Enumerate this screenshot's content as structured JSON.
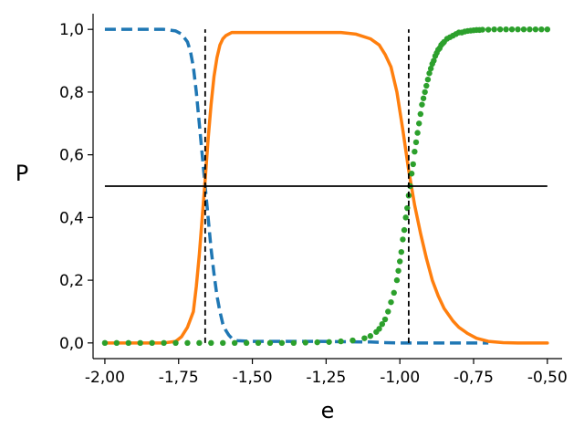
{
  "chart_data": {
    "type": "line",
    "title": "",
    "xlabel": "e",
    "ylabel": "P",
    "xlim": [
      -2.04,
      -0.45
    ],
    "ylim": [
      -0.05,
      1.05
    ],
    "grid": false,
    "legend": "none",
    "x_ticks": [
      -2.0,
      -1.75,
      -1.5,
      -1.25,
      -1.0,
      -0.75,
      -0.5
    ],
    "x_tick_labels": [
      "-2,00",
      "-1,75",
      "-1,50",
      "-1,25",
      "-1,00",
      "-0,75",
      "-0,50"
    ],
    "y_ticks": [
      0.0,
      0.2,
      0.4,
      0.6,
      0.8,
      1.0
    ],
    "y_tick_labels": [
      "0,0",
      "0,2",
      "0,4",
      "0,6",
      "0,8",
      "1,0"
    ],
    "reference_lines": {
      "horizontal": {
        "y": 0.5,
        "x_range": [
          -2.0,
          -0.5
        ],
        "color": "#000000",
        "style": "solid"
      },
      "vertical": [
        {
          "x": -1.66,
          "y_range": [
            0.0,
            1.0
          ],
          "color": "#000000",
          "style": "dashed"
        },
        {
          "x": -0.97,
          "y_range": [
            0.0,
            1.0
          ],
          "color": "#000000",
          "style": "dashed"
        }
      ]
    },
    "series": [
      {
        "style": "dashed-line",
        "color": "#1f77b4",
        "x": [
          -2.0,
          -1.95,
          -1.9,
          -1.85,
          -1.8,
          -1.76,
          -1.74,
          -1.72,
          -1.71,
          -1.7,
          -1.69,
          -1.68,
          -1.67,
          -1.66,
          -1.65,
          -1.64,
          -1.63,
          -1.62,
          -1.61,
          -1.6,
          -1.59,
          -1.58,
          -1.57,
          -1.56,
          -1.55,
          -1.5,
          -1.4,
          -1.3,
          -1.2,
          -1.1,
          -1.05,
          -1.0,
          -0.9,
          -0.8,
          -0.7
        ],
        "y": [
          1.0,
          1.0,
          1.0,
          1.0,
          1.0,
          0.995,
          0.985,
          0.96,
          0.93,
          0.88,
          0.8,
          0.7,
          0.6,
          0.5,
          0.4,
          0.3,
          0.22,
          0.15,
          0.1,
          0.06,
          0.04,
          0.025,
          0.015,
          0.01,
          0.007,
          0.005,
          0.005,
          0.005,
          0.004,
          0.003,
          0.001,
          0.0,
          0.0,
          0.0,
          0.0
        ]
      },
      {
        "style": "solid-line",
        "color": "#ff7f0e",
        "x": [
          -2.0,
          -1.9,
          -1.8,
          -1.76,
          -1.74,
          -1.72,
          -1.7,
          -1.69,
          -1.68,
          -1.67,
          -1.66,
          -1.65,
          -1.64,
          -1.63,
          -1.62,
          -1.61,
          -1.6,
          -1.59,
          -1.58,
          -1.57,
          -1.56,
          -1.55,
          -1.5,
          -1.4,
          -1.3,
          -1.2,
          -1.15,
          -1.1,
          -1.07,
          -1.05,
          -1.03,
          -1.01,
          -0.99,
          -0.97,
          -0.95,
          -0.93,
          -0.91,
          -0.89,
          -0.87,
          -0.85,
          -0.82,
          -0.8,
          -0.77,
          -0.74,
          -0.7,
          -0.65,
          -0.6,
          -0.5
        ],
        "y": [
          0.0,
          0.0,
          0.0,
          0.005,
          0.02,
          0.05,
          0.1,
          0.18,
          0.28,
          0.4,
          0.52,
          0.65,
          0.76,
          0.85,
          0.91,
          0.95,
          0.97,
          0.98,
          0.985,
          0.99,
          0.99,
          0.99,
          0.99,
          0.99,
          0.99,
          0.99,
          0.985,
          0.97,
          0.95,
          0.92,
          0.88,
          0.8,
          0.68,
          0.55,
          0.44,
          0.35,
          0.27,
          0.2,
          0.15,
          0.11,
          0.07,
          0.05,
          0.03,
          0.015,
          0.005,
          0.001,
          0.0,
          0.0
        ]
      },
      {
        "style": "dots",
        "color": "#2ca02c",
        "x": [
          -2.0,
          -1.96,
          -1.92,
          -1.88,
          -1.84,
          -1.8,
          -1.76,
          -1.72,
          -1.68,
          -1.64,
          -1.6,
          -1.56,
          -1.52,
          -1.48,
          -1.44,
          -1.4,
          -1.36,
          -1.32,
          -1.28,
          -1.24,
          -1.2,
          -1.16,
          -1.12,
          -1.1,
          -1.08,
          -1.07,
          -1.06,
          -1.05,
          -1.04,
          -1.03,
          -1.02,
          -1.01,
          -1.005,
          -1.0,
          -0.995,
          -0.99,
          -0.985,
          -0.98,
          -0.975,
          -0.97,
          -0.965,
          -0.96,
          -0.955,
          -0.95,
          -0.945,
          -0.94,
          -0.935,
          -0.93,
          -0.925,
          -0.92,
          -0.915,
          -0.91,
          -0.905,
          -0.9,
          -0.895,
          -0.89,
          -0.885,
          -0.88,
          -0.875,
          -0.87,
          -0.865,
          -0.86,
          -0.855,
          -0.85,
          -0.84,
          -0.83,
          -0.82,
          -0.81,
          -0.8,
          -0.79,
          -0.78,
          -0.77,
          -0.76,
          -0.75,
          -0.74,
          -0.73,
          -0.72,
          -0.7,
          -0.68,
          -0.66,
          -0.64,
          -0.62,
          -0.6,
          -0.58,
          -0.56,
          -0.54,
          -0.52,
          -0.5
        ],
        "y": [
          0.0,
          0.0,
          0.0,
          0.0,
          0.0,
          0.0,
          0.0,
          0.0,
          0.0,
          0.0,
          0.0,
          0.0,
          0.0,
          0.0,
          0.0,
          0.0,
          0.0,
          0.001,
          0.002,
          0.003,
          0.005,
          0.008,
          0.015,
          0.022,
          0.035,
          0.045,
          0.06,
          0.075,
          0.1,
          0.13,
          0.16,
          0.2,
          0.23,
          0.26,
          0.29,
          0.33,
          0.36,
          0.4,
          0.43,
          0.47,
          0.5,
          0.54,
          0.57,
          0.61,
          0.64,
          0.67,
          0.7,
          0.73,
          0.76,
          0.78,
          0.8,
          0.82,
          0.84,
          0.86,
          0.875,
          0.89,
          0.9,
          0.915,
          0.925,
          0.935,
          0.94,
          0.95,
          0.955,
          0.96,
          0.97,
          0.975,
          0.98,
          0.985,
          0.99,
          0.99,
          0.993,
          0.995,
          0.996,
          0.997,
          0.998,
          0.998,
          0.999,
          0.999,
          1.0,
          1.0,
          1.0,
          1.0,
          1.0,
          1.0,
          1.0,
          1.0,
          1.0,
          1.0
        ]
      }
    ]
  }
}
